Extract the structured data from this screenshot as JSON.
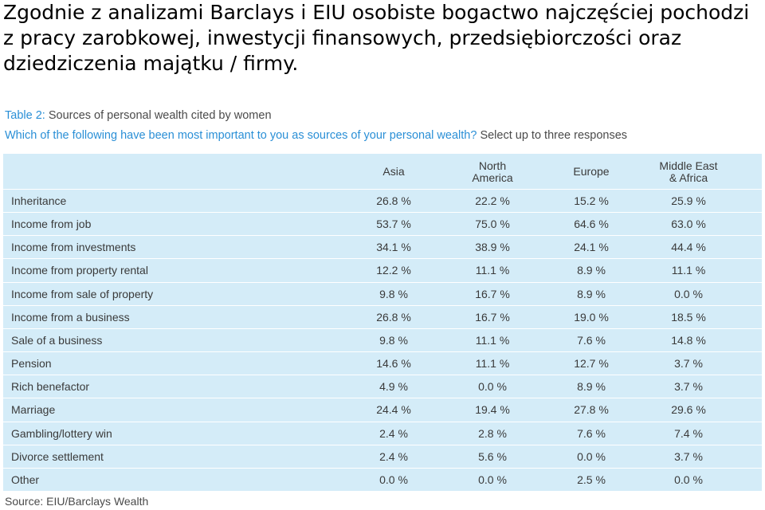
{
  "heading": {
    "line1": "Zgodnie z analizami Barclays i EIU osobiste bogactwo najczęściej pochodzi",
    "line2": "z pracy zarobkowej, inwestycji finansowych, przedsiębiorczości oraz",
    "line3": "dziedziczenia majątku / firmy."
  },
  "table_title": {
    "label": "Table 2:",
    "text": "Sources of personal wealth cited by women"
  },
  "question": {
    "text": "Which of the following have been most important to you as sources of your personal wealth?",
    "note": "Select up to three responses"
  },
  "columns": [
    "Asia",
    "North America",
    "Europe",
    "Middle East & Africa"
  ],
  "columns_display": [
    {
      "l1": "Asia",
      "l2": ""
    },
    {
      "l1": "North",
      "l2": "America"
    },
    {
      "l1": "Europe",
      "l2": ""
    },
    {
      "l1": "Middle East",
      "l2": "& Africa"
    }
  ],
  "rows": [
    {
      "label": "Inheritance",
      "values": [
        "26.8 %",
        "22.2 %",
        "15.2 %",
        "25.9 %"
      ]
    },
    {
      "label": "Income from job",
      "values": [
        "53.7 %",
        "75.0 %",
        "64.6 %",
        "63.0 %"
      ]
    },
    {
      "label": "Income from investments",
      "values": [
        "34.1 %",
        "38.9 %",
        "24.1 %",
        "44.4 %"
      ]
    },
    {
      "label": "Income from property rental",
      "values": [
        "12.2 %",
        "11.1 %",
        "8.9 %",
        "11.1 %"
      ]
    },
    {
      "label": "Income from sale of property",
      "values": [
        "9.8 %",
        "16.7 %",
        "8.9 %",
        "0.0 %"
      ]
    },
    {
      "label": "Income from a business",
      "values": [
        "26.8 %",
        "16.7 %",
        "19.0 %",
        "18.5 %"
      ]
    },
    {
      "label": "Sale of a business",
      "values": [
        "9.8 %",
        "11.1 %",
        "7.6 %",
        "14.8 %"
      ]
    },
    {
      "label": "Pension",
      "values": [
        "14.6 %",
        "11.1 %",
        "12.7 %",
        "3.7 %"
      ]
    },
    {
      "label": "Rich benefactor",
      "values": [
        "4.9 %",
        "0.0 %",
        "8.9 %",
        "3.7 %"
      ]
    },
    {
      "label": "Marriage",
      "values": [
        "24.4 %",
        "19.4 %",
        "27.8 %",
        "29.6 %"
      ]
    },
    {
      "label": "Gambling/lottery win",
      "values": [
        "2.4 %",
        "2.8 %",
        "7.6 %",
        "7.4 %"
      ]
    },
    {
      "label": "Divorce settlement",
      "values": [
        "2.4 %",
        "5.6 %",
        "0.0 %",
        "3.7 %"
      ]
    },
    {
      "label": "Other",
      "values": [
        "0.0 %",
        "0.0 %",
        "2.5 %",
        "0.0 %"
      ]
    }
  ],
  "source": "Source: EIU/Barclays Wealth",
  "colors": {
    "table_background": "#d4ecf8",
    "accent_blue": "#2a8fd6",
    "text_gray": "#3a3a3a"
  }
}
